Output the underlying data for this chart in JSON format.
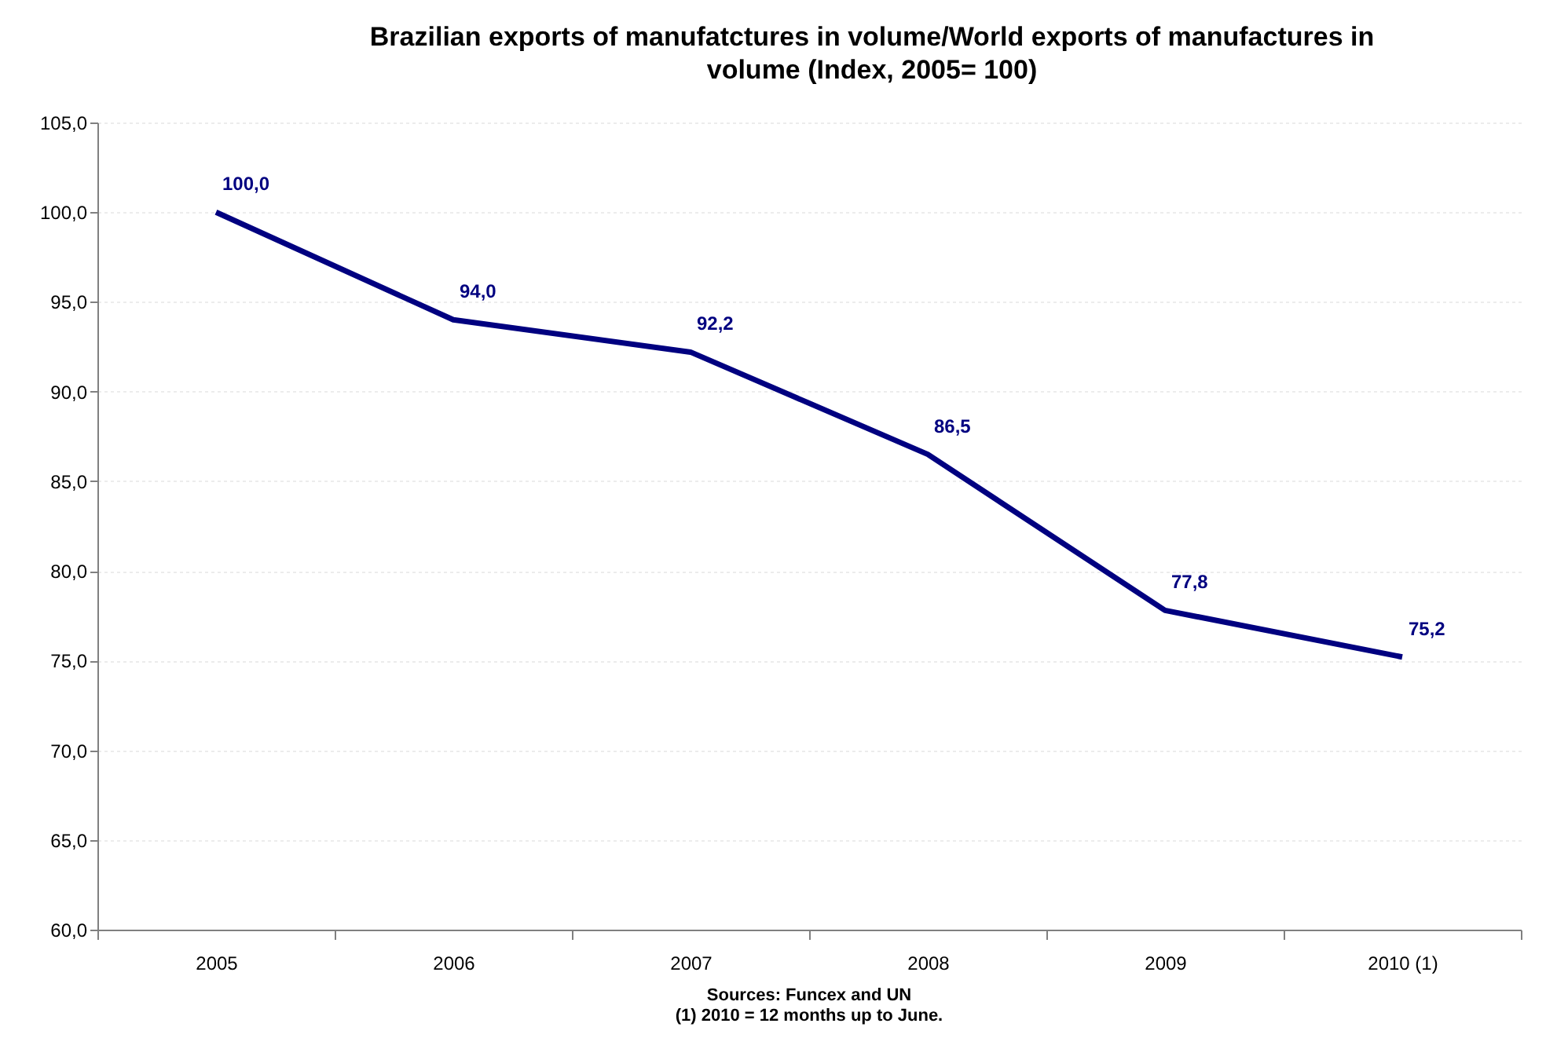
{
  "chart_data": {
    "type": "line",
    "title": "Brazilian exports of manufatctures in volume/World exports of manufactures in volume (Index, 2005= 100)",
    "categories": [
      "2005",
      "2006",
      "2007",
      "2008",
      "2009",
      "2010 (1)"
    ],
    "series": [
      {
        "color": "#000080",
        "values": [
          100.0,
          94.0,
          92.2,
          86.5,
          77.8,
          75.2
        ],
        "value_labels": [
          "100,0",
          "94,0",
          "92,2",
          "86,5",
          "77,8",
          "75,2"
        ]
      }
    ],
    "ylim": [
      60,
      105
    ],
    "yticks": [
      {
        "value": 60,
        "label": "60,0"
      },
      {
        "value": 65,
        "label": "65,0"
      },
      {
        "value": 70,
        "label": "70,0"
      },
      {
        "value": 75,
        "label": "75,0"
      },
      {
        "value": 80,
        "label": "80,0"
      },
      {
        "value": 85,
        "label": "85,0"
      },
      {
        "value": 90,
        "label": "90,0"
      },
      {
        "value": 95,
        "label": "95,0"
      },
      {
        "value": 100,
        "label": "100,0"
      },
      {
        "value": 105,
        "label": "105,0"
      }
    ],
    "grid": "y",
    "marker": "none",
    "line_style": "solid",
    "annotations": [
      "Sources: Funcex  and  UN",
      "(1) 2010 = 12 months up to June."
    ]
  }
}
